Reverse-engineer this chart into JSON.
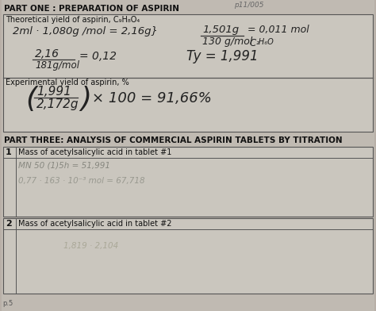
{
  "page_bg": "#b8b0a8",
  "paper_bg": "#d8d4cc",
  "box_bg": "#ccc8c0",
  "title1": "PART ONE : PREPARATION OF ASPIRIN",
  "title2": "PART THREE: ANALYSIS OF COMMERCIAL ASPIRIN TABLETS BY TITRATION",
  "header_scribble": "p11/005",
  "box1_label": "Theoretical yield of aspirin, C₉H₈O₄",
  "box2_label": "Experimental yield of aspirin, %",
  "row1_num": "1",
  "row1_label": "Mass of acetylsalicylic acid in tablet #1",
  "row1_scribble1": "MN 50 (1)5h = 51,991",
  "row1_scribble2": "0,77 · 163 · 10⁻³ mol = 67,718",
  "row2_num": "2",
  "row2_label": "Mass of acetylsalicylic acid in tablet #2",
  "row2_scribble": "1,819 · 2,104",
  "figsize": [
    4.74,
    3.92
  ],
  "dpi": 100
}
